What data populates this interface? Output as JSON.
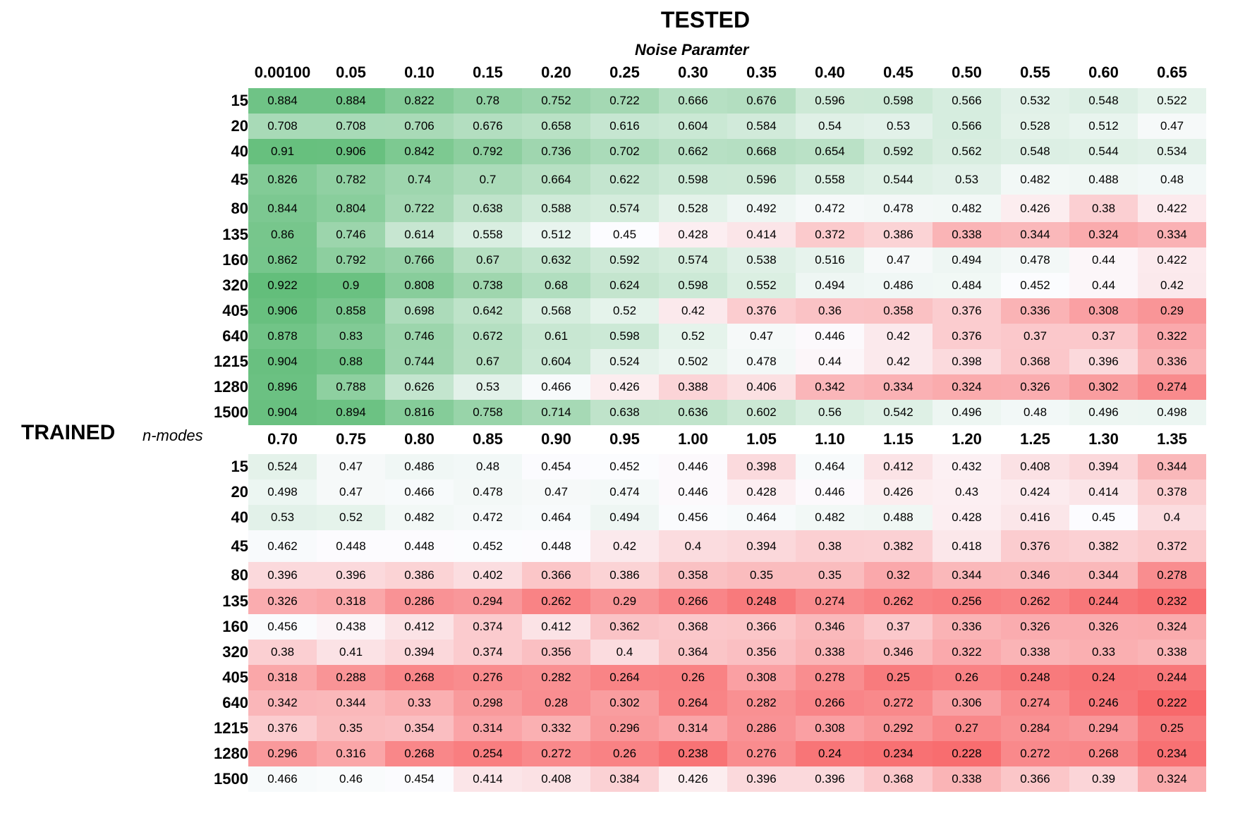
{
  "title": "TESTED",
  "x_axis_label": "Noise Paramter",
  "y_axis_title": "TRAINED",
  "y_axis_label": "n-modes",
  "colors": {
    "high": "#63be7b",
    "mid": "#fcfcff",
    "low": "#f8696b"
  },
  "chart_data": {
    "type": "heatmap",
    "title": "TESTED",
    "xlabel": "Noise Paramter",
    "ylabel": "TRAINED n-modes",
    "color_scale": {
      "min": 0.222,
      "mid": 0.45,
      "max": 0.922
    },
    "rows": [
      "15",
      "20",
      "40",
      "45",
      "80",
      "135",
      "160",
      "320",
      "405",
      "640",
      "1215",
      "1280",
      "1500"
    ],
    "blocks": [
      {
        "columns": [
          "0.00100",
          "0.05",
          "0.10",
          "0.15",
          "0.20",
          "0.25",
          "0.30",
          "0.35",
          "0.40",
          "0.45",
          "0.50",
          "0.55",
          "0.60",
          "0.65"
        ],
        "values": [
          [
            "0.884",
            "0.884",
            "0.822",
            "0.78",
            "0.752",
            "0.722",
            "0.666",
            "0.676",
            "0.596",
            "0.598",
            "0.566",
            "0.532",
            "0.548",
            "0.522"
          ],
          [
            "0.708",
            "0.708",
            "0.706",
            "0.676",
            "0.658",
            "0.616",
            "0.604",
            "0.584",
            "0.54",
            "0.53",
            "0.566",
            "0.528",
            "0.512",
            "0.47"
          ],
          [
            "0.91",
            "0.906",
            "0.842",
            "0.792",
            "0.736",
            "0.702",
            "0.662",
            "0.668",
            "0.654",
            "0.592",
            "0.562",
            "0.548",
            "0.544",
            "0.534"
          ],
          [
            "0.826",
            "0.782",
            "0.74",
            "0.7",
            "0.664",
            "0.622",
            "0.598",
            "0.596",
            "0.558",
            "0.544",
            "0.53",
            "0.482",
            "0.488",
            "0.48"
          ],
          [
            "0.844",
            "0.804",
            "0.722",
            "0.638",
            "0.588",
            "0.574",
            "0.528",
            "0.492",
            "0.472",
            "0.478",
            "0.482",
            "0.426",
            "0.38",
            "0.422"
          ],
          [
            "0.86",
            "0.746",
            "0.614",
            "0.558",
            "0.512",
            "0.45",
            "0.428",
            "0.414",
            "0.372",
            "0.386",
            "0.338",
            "0.344",
            "0.324",
            "0.334"
          ],
          [
            "0.862",
            "0.792",
            "0.766",
            "0.67",
            "0.632",
            "0.592",
            "0.574",
            "0.538",
            "0.516",
            "0.47",
            "0.494",
            "0.478",
            "0.44",
            "0.422"
          ],
          [
            "0.922",
            "0.9",
            "0.808",
            "0.738",
            "0.68",
            "0.624",
            "0.598",
            "0.552",
            "0.494",
            "0.486",
            "0.484",
            "0.452",
            "0.44",
            "0.42"
          ],
          [
            "0.906",
            "0.858",
            "0.698",
            "0.642",
            "0.568",
            "0.52",
            "0.42",
            "0.376",
            "0.36",
            "0.358",
            "0.376",
            "0.336",
            "0.308",
            "0.29"
          ],
          [
            "0.878",
            "0.83",
            "0.746",
            "0.672",
            "0.61",
            "0.598",
            "0.52",
            "0.47",
            "0.446",
            "0.42",
            "0.376",
            "0.37",
            "0.37",
            "0.322"
          ],
          [
            "0.904",
            "0.88",
            "0.744",
            "0.67",
            "0.604",
            "0.524",
            "0.502",
            "0.478",
            "0.44",
            "0.42",
            "0.398",
            "0.368",
            "0.396",
            "0.336"
          ],
          [
            "0.896",
            "0.788",
            "0.626",
            "0.53",
            "0.466",
            "0.426",
            "0.388",
            "0.406",
            "0.342",
            "0.334",
            "0.324",
            "0.326",
            "0.302",
            "0.274"
          ],
          [
            "0.904",
            "0.894",
            "0.816",
            "0.758",
            "0.714",
            "0.638",
            "0.636",
            "0.602",
            "0.56",
            "0.542",
            "0.496",
            "0.48",
            "0.496",
            "0.498"
          ]
        ]
      },
      {
        "columns": [
          "0.70",
          "0.75",
          "0.80",
          "0.85",
          "0.90",
          "0.95",
          "1.00",
          "1.05",
          "1.10",
          "1.15",
          "1.20",
          "1.25",
          "1.30",
          "1.35"
        ],
        "values": [
          [
            "0.524",
            "0.47",
            "0.486",
            "0.48",
            "0.454",
            "0.452",
            "0.446",
            "0.398",
            "0.464",
            "0.412",
            "0.432",
            "0.408",
            "0.394",
            "0.344"
          ],
          [
            "0.498",
            "0.47",
            "0.466",
            "0.478",
            "0.47",
            "0.474",
            "0.446",
            "0.428",
            "0.446",
            "0.426",
            "0.43",
            "0.424",
            "0.414",
            "0.378"
          ],
          [
            "0.53",
            "0.52",
            "0.482",
            "0.472",
            "0.464",
            "0.494",
            "0.456",
            "0.464",
            "0.482",
            "0.488",
            "0.428",
            "0.416",
            "0.45",
            "0.4"
          ],
          [
            "0.462",
            "0.448",
            "0.448",
            "0.452",
            "0.448",
            "0.42",
            "0.4",
            "0.394",
            "0.38",
            "0.382",
            "0.418",
            "0.376",
            "0.382",
            "0.372"
          ],
          [
            "0.396",
            "0.396",
            "0.386",
            "0.402",
            "0.366",
            "0.386",
            "0.358",
            "0.35",
            "0.35",
            "0.32",
            "0.344",
            "0.346",
            "0.344",
            "0.278"
          ],
          [
            "0.326",
            "0.318",
            "0.286",
            "0.294",
            "0.262",
            "0.29",
            "0.266",
            "0.248",
            "0.274",
            "0.262",
            "0.256",
            "0.262",
            "0.244",
            "0.232"
          ],
          [
            "0.456",
            "0.438",
            "0.412",
            "0.374",
            "0.412",
            "0.362",
            "0.368",
            "0.366",
            "0.346",
            "0.37",
            "0.336",
            "0.326",
            "0.326",
            "0.324"
          ],
          [
            "0.38",
            "0.41",
            "0.394",
            "0.374",
            "0.356",
            "0.4",
            "0.364",
            "0.356",
            "0.338",
            "0.346",
            "0.322",
            "0.338",
            "0.33",
            "0.338"
          ],
          [
            "0.318",
            "0.288",
            "0.268",
            "0.276",
            "0.282",
            "0.264",
            "0.26",
            "0.308",
            "0.278",
            "0.25",
            "0.26",
            "0.248",
            "0.24",
            "0.244"
          ],
          [
            "0.342",
            "0.344",
            "0.33",
            "0.298",
            "0.28",
            "0.302",
            "0.264",
            "0.282",
            "0.266",
            "0.272",
            "0.306",
            "0.274",
            "0.246",
            "0.222"
          ],
          [
            "0.376",
            "0.35",
            "0.354",
            "0.314",
            "0.332",
            "0.296",
            "0.314",
            "0.286",
            "0.308",
            "0.292",
            "0.27",
            "0.284",
            "0.294",
            "0.25"
          ],
          [
            "0.296",
            "0.316",
            "0.268",
            "0.254",
            "0.272",
            "0.26",
            "0.238",
            "0.276",
            "0.24",
            "0.234",
            "0.228",
            "0.272",
            "0.268",
            "0.234"
          ],
          [
            "0.466",
            "0.46",
            "0.454",
            "0.414",
            "0.408",
            "0.384",
            "0.426",
            "0.396",
            "0.396",
            "0.368",
            "0.338",
            "0.366",
            "0.39",
            "0.324"
          ]
        ]
      }
    ]
  }
}
